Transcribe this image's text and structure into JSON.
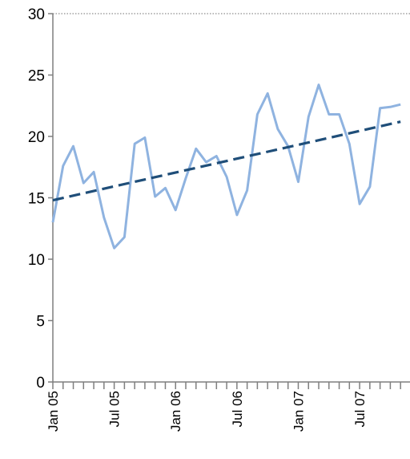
{
  "chart_data": {
    "type": "line",
    "title": "",
    "xlabel": "",
    "ylabel": "",
    "ylim": [
      0,
      30
    ],
    "y_ticks": [
      "0",
      "5",
      "10",
      "15",
      "20",
      "25",
      "30"
    ],
    "x_tick_labels": [
      "Jan 05",
      "Jul 05",
      "Jan 06",
      "Jul 06",
      "Jan 07",
      "Jul 07"
    ],
    "x_labeled_indices": [
      0,
      6,
      12,
      18,
      24,
      30
    ],
    "months": [
      "Jan 05",
      "Feb 05",
      "Mar 05",
      "Apr 05",
      "May 05",
      "Jun 05",
      "Jul 05",
      "Aug 05",
      "Sep 05",
      "Oct 05",
      "Nov 05",
      "Dec 05",
      "Jan 06",
      "Feb 06",
      "Mar 06",
      "Apr 06",
      "May 06",
      "Jun 06",
      "Jul 06",
      "Aug 06",
      "Sep 06",
      "Oct 06",
      "Nov 06",
      "Dec 06",
      "Jan 07",
      "Feb 07",
      "Mar 07",
      "Apr 07",
      "May 07",
      "Jun 07",
      "Jul 07",
      "Aug 07",
      "Sep 07",
      "Oct 07",
      "Nov 07"
    ],
    "series": [
      {
        "values": [
          13.0,
          17.6,
          19.2,
          16.2,
          17.1,
          13.4,
          10.9,
          11.8,
          19.4,
          19.9,
          15.1,
          15.8,
          14.0,
          16.6,
          19.0,
          17.9,
          18.4,
          16.7,
          13.6,
          15.6,
          21.8,
          23.5,
          20.6,
          19.2,
          16.3,
          21.6,
          24.2,
          21.8,
          21.8,
          19.4,
          14.5,
          15.9,
          22.3,
          22.4,
          22.6
        ],
        "color": "#8fb3e0",
        "style": "solid"
      },
      {
        "type": "trendline",
        "start": 14.8,
        "end": 21.2,
        "color": "#1f4e79",
        "style": "dashed"
      }
    ],
    "grid": false,
    "top_border": "dotted"
  }
}
